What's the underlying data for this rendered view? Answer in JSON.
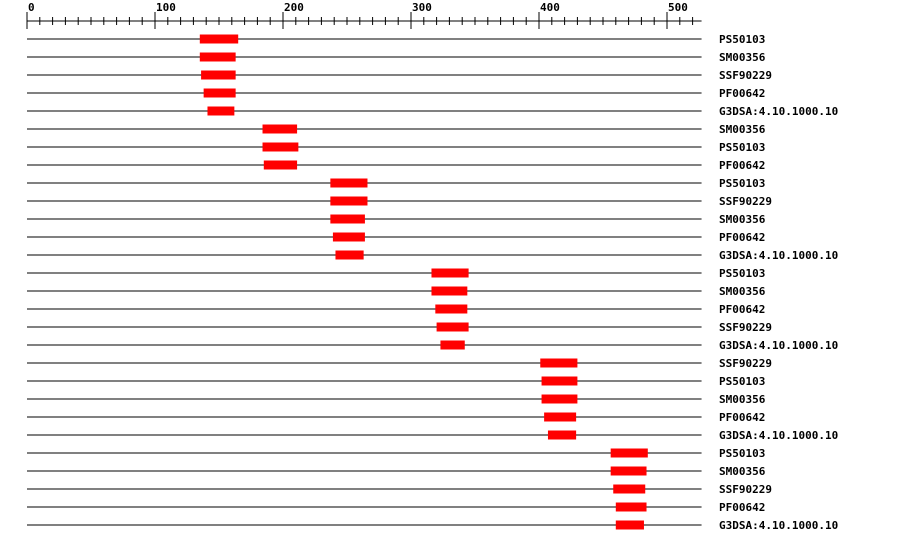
{
  "chart_data": {
    "type": "domain-map",
    "axis": {
      "min": 0,
      "max": 527,
      "major_ticks": [
        0,
        100,
        200,
        300,
        400,
        500
      ],
      "minor_tick_step": 10
    },
    "bar_color": "#ff0000",
    "rows": [
      {
        "label": "PS50103",
        "start": 135,
        "end": 165
      },
      {
        "label": "SM00356",
        "start": 135,
        "end": 163
      },
      {
        "label": "SSF90229",
        "start": 136,
        "end": 163
      },
      {
        "label": "PF00642",
        "start": 138,
        "end": 163
      },
      {
        "label": "G3DSA:4.10.1000.10",
        "start": 141,
        "end": 162
      },
      {
        "label": "SM00356",
        "start": 184,
        "end": 211
      },
      {
        "label": "PS50103",
        "start": 184,
        "end": 212
      },
      {
        "label": "PF00642",
        "start": 185,
        "end": 211
      },
      {
        "label": "PS50103",
        "start": 237,
        "end": 266
      },
      {
        "label": "SSF90229",
        "start": 237,
        "end": 266
      },
      {
        "label": "SM00356",
        "start": 237,
        "end": 264
      },
      {
        "label": "PF00642",
        "start": 239,
        "end": 264
      },
      {
        "label": "G3DSA:4.10.1000.10",
        "start": 241,
        "end": 263
      },
      {
        "label": "PS50103",
        "start": 316,
        "end": 345
      },
      {
        "label": "SM00356",
        "start": 316,
        "end": 344
      },
      {
        "label": "PF00642",
        "start": 319,
        "end": 344
      },
      {
        "label": "SSF90229",
        "start": 320,
        "end": 345
      },
      {
        "label": "G3DSA:4.10.1000.10",
        "start": 323,
        "end": 342
      },
      {
        "label": "SSF90229",
        "start": 401,
        "end": 430
      },
      {
        "label": "PS50103",
        "start": 402,
        "end": 430
      },
      {
        "label": "SM00356",
        "start": 402,
        "end": 430
      },
      {
        "label": "PF00642",
        "start": 404,
        "end": 429
      },
      {
        "label": "G3DSA:4.10.1000.10",
        "start": 407,
        "end": 429
      },
      {
        "label": "PS50103",
        "start": 456,
        "end": 485
      },
      {
        "label": "SM00356",
        "start": 456,
        "end": 484
      },
      {
        "label": "SSF90229",
        "start": 458,
        "end": 483
      },
      {
        "label": "PF00642",
        "start": 460,
        "end": 484
      },
      {
        "label": "G3DSA:4.10.1000.10",
        "start": 460,
        "end": 482
      }
    ]
  }
}
